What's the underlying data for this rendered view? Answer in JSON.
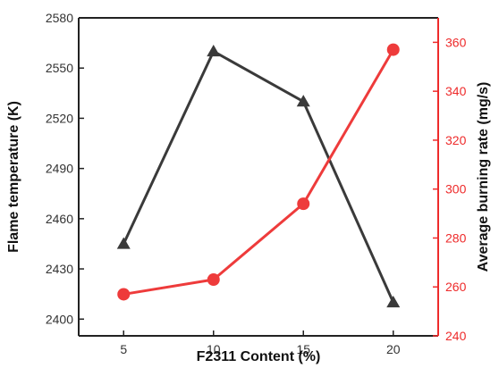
{
  "chart_data": {
    "type": "line",
    "xlabel": "F2311 Content (%)",
    "ylabel_left": "Flame temperature (K)",
    "ylabel_right": "Average burning rate (mg/s)",
    "x_ticks": [
      "5",
      "10",
      "15",
      "20"
    ],
    "y_left_ticks": [
      "2400",
      "2430",
      "2460",
      "2490",
      "2520",
      "2550",
      "2580"
    ],
    "y_right_ticks": [
      "240",
      "260",
      "280",
      "300",
      "320",
      "340",
      "360"
    ],
    "xlim": [
      2.5,
      22.5
    ],
    "ylim_left": [
      2390,
      2580
    ],
    "ylim_right": [
      240,
      370
    ],
    "grid": false,
    "series": [
      {
        "axis": "left",
        "marker": "triangle",
        "color": "#3a3a3a",
        "x": [
          5,
          10,
          15,
          20
        ],
        "values": [
          2445,
          2560,
          2530,
          2410
        ]
      },
      {
        "axis": "right",
        "marker": "circle",
        "color": "#ee3b3b",
        "x": [
          5,
          10,
          15,
          20
        ],
        "values": [
          257,
          263,
          294,
          357
        ]
      }
    ]
  },
  "colors": {
    "left_axis": "#222222",
    "right_axis": "#ee2b2b"
  }
}
